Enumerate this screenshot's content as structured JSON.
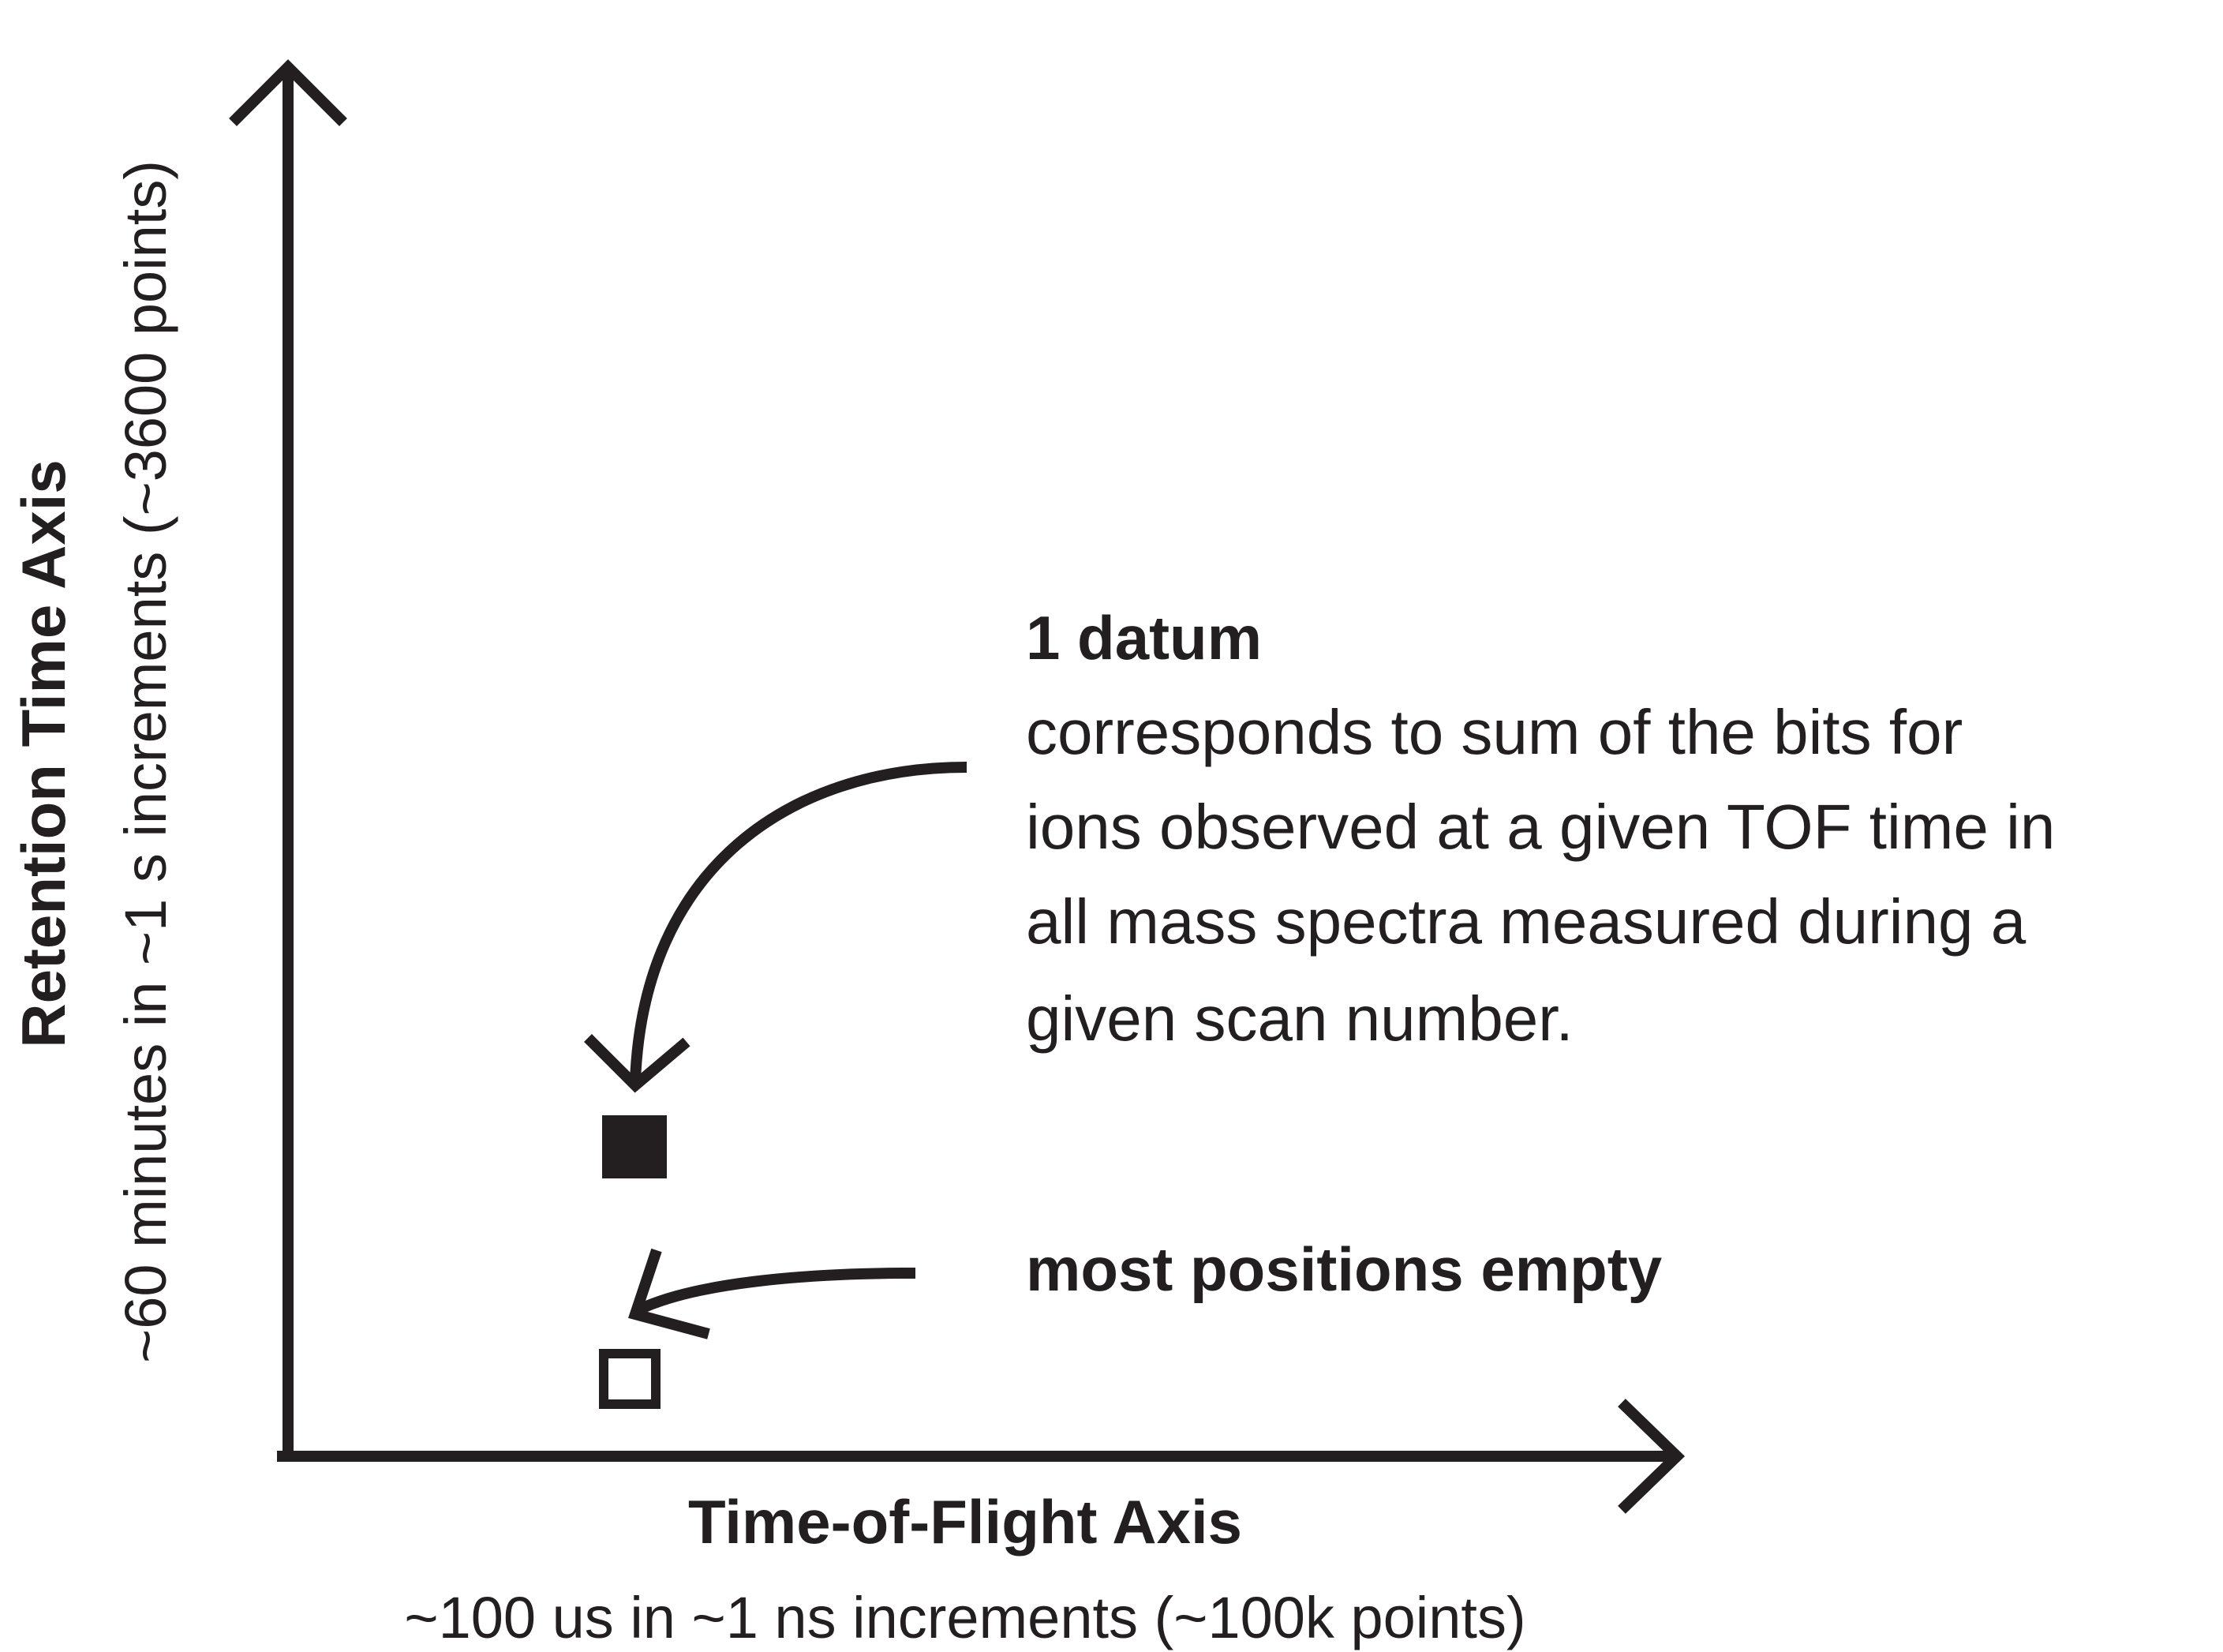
{
  "y_axis": {
    "title": "Retention Time Axis",
    "subtitle": "~60 minutes in ~1 s increments (~3600 points)"
  },
  "x_axis": {
    "title": "Time-of-Flight Axis",
    "subtitle": "~100 us in ~1 ns increments (~100k points)"
  },
  "datum_annotation": {
    "heading": "1 datum",
    "lines": [
      "corresponds to sum of the bits for",
      "ions observed at a given TOF time in",
      "all mass spectra measured during a",
      "given scan number."
    ]
  },
  "empty_annotation": {
    "heading": "most positions empty"
  },
  "colors": {
    "ink": "#231f20",
    "background": "#ffffff"
  }
}
